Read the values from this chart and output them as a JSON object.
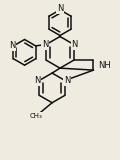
{
  "background_color": "#f0ebe0",
  "bond_color": "#111111",
  "bond_width": 1.1,
  "fig_width": 1.2,
  "fig_height": 1.6,
  "dpi": 100,
  "xlim": [
    0,
    120
  ],
  "ylim": [
    0,
    160
  ]
}
